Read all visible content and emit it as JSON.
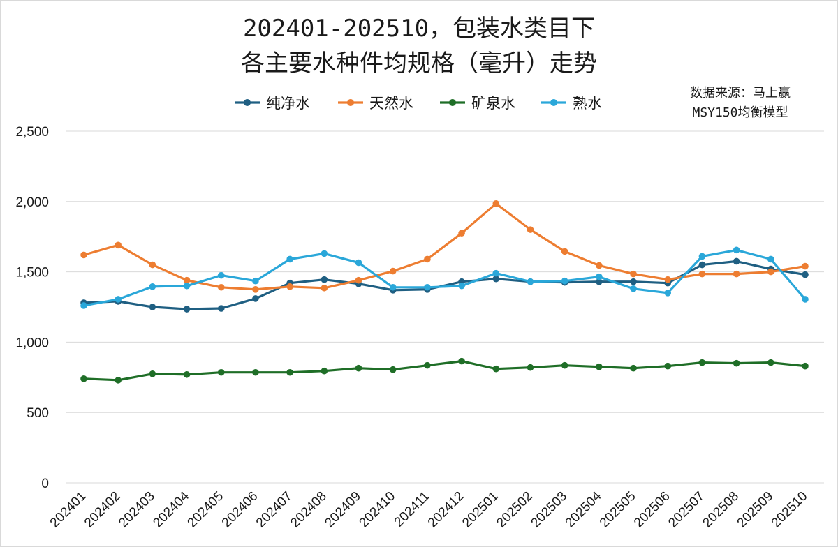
{
  "title_line1": "202401-202510，包装水类目下",
  "title_line2": "各主要水种件均规格（毫升）走势",
  "source_line1": "数据来源：马上赢",
  "source_line2": "MSY150均衡模型",
  "chart_data": {
    "type": "line",
    "title": "202401-202510，包装水类目下 各主要水种件均规格（毫升）走势",
    "categories": [
      "202401",
      "202402",
      "202403",
      "202404",
      "202405",
      "202406",
      "202407",
      "202408",
      "202409",
      "202410",
      "202411",
      "202412",
      "202501",
      "202502",
      "202503",
      "202504",
      "202505",
      "202506",
      "202507",
      "202508",
      "202509",
      "202510"
    ],
    "ylim": [
      0,
      2500
    ],
    "yticks": [
      0,
      500,
      1000,
      1500,
      2000,
      2500
    ],
    "ytick_labels": [
      "0",
      "500",
      "1,000",
      "1,500",
      "2,000",
      "2,500"
    ],
    "grid": true,
    "legend_position": "top",
    "series": [
      {
        "name": "纯净水",
        "color": "#1f5f82",
        "values": [
          1280,
          1290,
          1250,
          1235,
          1240,
          1310,
          1420,
          1445,
          1415,
          1370,
          1375,
          1430,
          1450,
          1430,
          1425,
          1430,
          1430,
          1420,
          1550,
          1575,
          1520,
          1480
        ]
      },
      {
        "name": "天然水",
        "color": "#ed7d31",
        "values": [
          1620,
          1690,
          1550,
          1440,
          1390,
          1375,
          1395,
          1385,
          1440,
          1505,
          1590,
          1775,
          1985,
          1800,
          1645,
          1545,
          1485,
          1445,
          1485,
          1485,
          1500,
          1540
        ]
      },
      {
        "name": "矿泉水",
        "color": "#1f6e27",
        "values": [
          740,
          730,
          775,
          770,
          785,
          785,
          785,
          795,
          815,
          805,
          835,
          865,
          810,
          820,
          835,
          825,
          815,
          830,
          855,
          850,
          855,
          830
        ]
      },
      {
        "name": "熟水",
        "color": "#2aa7d9",
        "values": [
          1260,
          1305,
          1395,
          1400,
          1475,
          1435,
          1590,
          1630,
          1565,
          1390,
          1390,
          1400,
          1490,
          1430,
          1435,
          1465,
          1380,
          1350,
          1610,
          1655,
          1590,
          1305
        ]
      }
    ]
  }
}
